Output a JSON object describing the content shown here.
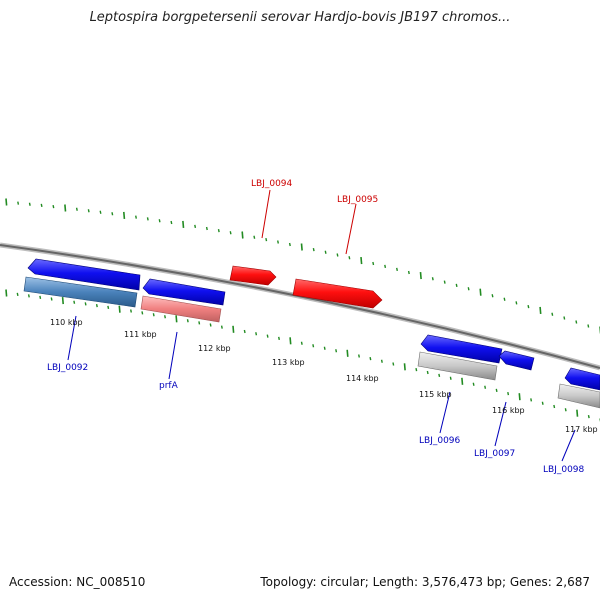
{
  "title": "Leptospira borgpetersenii serovar Hardjo-bovis JB197 chromos...",
  "accession": "Accession: NC_008510",
  "topology": "Topology: circular; Length: 3,576,473 bp; Genes: 2,687",
  "colors": {
    "forward_gene": "#ff0000",
    "forward_label": "#cc0000",
    "reverse_gene": "#0000ee",
    "reverse_label": "#0000bb",
    "tick": "#228b22",
    "backbone": "#777777"
  },
  "scale_labels": [
    "110 kbp",
    "111 kbp",
    "112 kbp",
    "113 kbp",
    "114 kbp",
    "115 kbp",
    "116 kbp",
    "117 kbp"
  ],
  "gene_labels": [
    {
      "id": "gene-label-lbj-0094",
      "text": "LBJ_0094",
      "strand": "forward"
    },
    {
      "id": "gene-label-lbj-0095",
      "text": "LBJ_0095",
      "strand": "forward"
    },
    {
      "id": "gene-label-lbj-0092",
      "text": "LBJ_0092",
      "strand": "reverse"
    },
    {
      "id": "gene-label-prfa",
      "text": "prfA",
      "strand": "reverse"
    },
    {
      "id": "gene-label-lbj-0096",
      "text": "LBJ_0096",
      "strand": "reverse"
    },
    {
      "id": "gene-label-lbj-0097",
      "text": "LBJ_0097",
      "strand": "reverse"
    },
    {
      "id": "gene-label-lbj-0098",
      "text": "LBJ_0098",
      "strand": "reverse"
    }
  ]
}
